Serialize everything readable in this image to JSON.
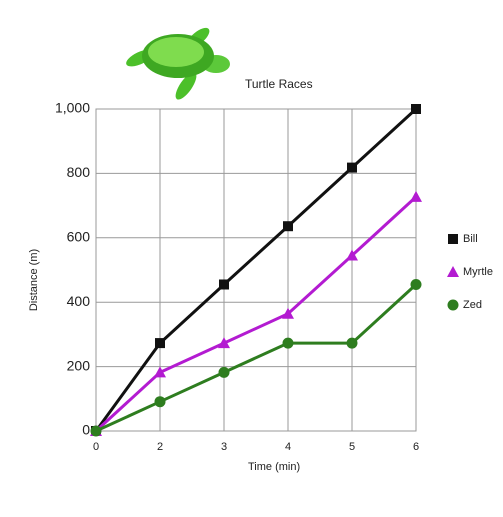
{
  "chart_data": {
    "type": "line",
    "title": "Turtle Races",
    "x_label": "Time (min)",
    "y_label": "Distance (m)",
    "categories": [
      "0",
      "2",
      "3",
      "4",
      "5",
      "6"
    ],
    "series": [
      {
        "name": "Bill",
        "color": "#111111",
        "marker": "square",
        "values": [
          0,
          273,
          455,
          636,
          818,
          1000
        ]
      },
      {
        "name": "Myrtle",
        "color": "#b31bd1",
        "marker": "triangle",
        "values": [
          0,
          182,
          273,
          364,
          545,
          727
        ]
      },
      {
        "name": "Zed",
        "color": "#2e7d1f",
        "marker": "circle",
        "values": [
          0,
          91,
          182,
          273,
          273,
          455
        ]
      }
    ],
    "ylim": [
      0,
      1000
    ],
    "yticks": [
      0,
      200,
      400,
      600,
      800,
      {
        "value": 1000,
        "label": "1,000"
      }
    ],
    "grid": true,
    "legend": "right"
  }
}
